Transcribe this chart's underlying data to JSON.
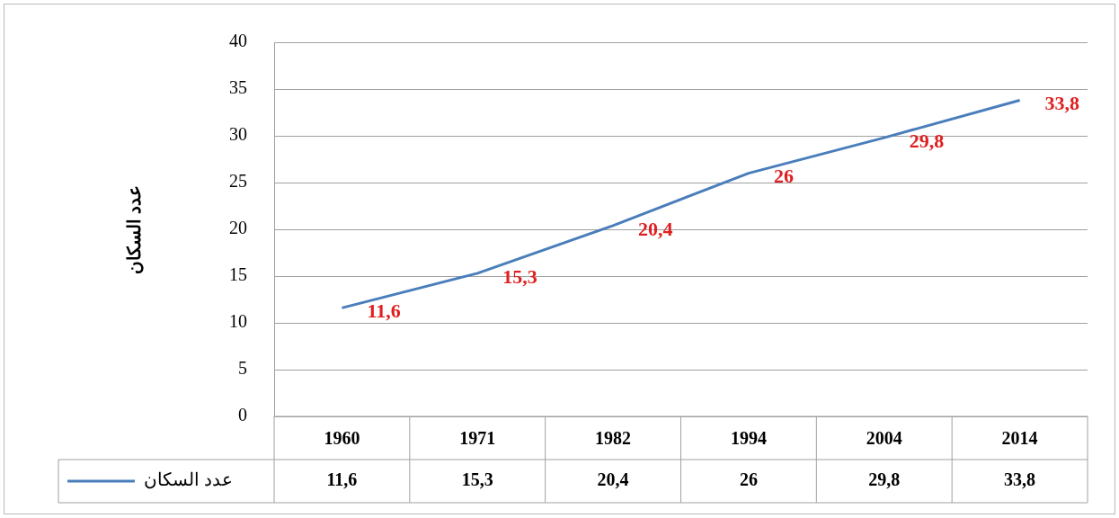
{
  "chart_data": {
    "type": "line",
    "ylabel": "عدد السكان",
    "categories": [
      "1960",
      "1971",
      "1982",
      "1994",
      "2004",
      "2014"
    ],
    "series": [
      {
        "name": "عدد السكان",
        "color": "#4a7ebb",
        "values": [
          11.6,
          15.3,
          20.4,
          26,
          29.8,
          33.8
        ],
        "value_labels": [
          "11,6",
          "15,3",
          "20,4",
          "26",
          "29,8",
          "33,8"
        ]
      }
    ],
    "ylim": [
      0,
      40
    ],
    "yticks": [
      0,
      5,
      10,
      15,
      20,
      25,
      30,
      35,
      40
    ],
    "grid": "y",
    "legend": "bottom",
    "marker": "none",
    "line_style": "solid"
  }
}
